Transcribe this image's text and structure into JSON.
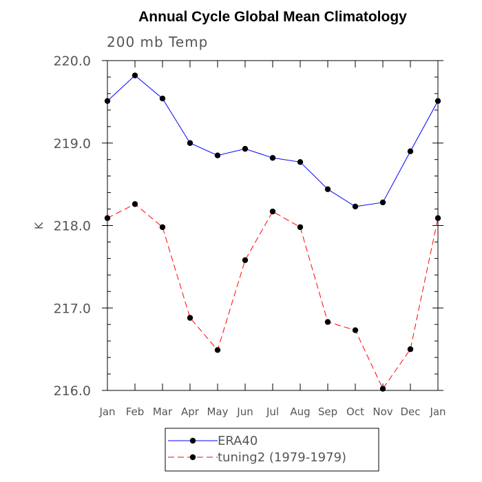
{
  "chart_data": {
    "type": "line",
    "title": "Annual Cycle Global Mean Climatology",
    "subtitle": "200 mb Temp",
    "xlabel": "",
    "ylabel": "K",
    "categories": [
      "Jan",
      "Feb",
      "Mar",
      "Apr",
      "May",
      "Jun",
      "Jul",
      "Aug",
      "Sep",
      "Oct",
      "Nov",
      "Dec",
      "Jan"
    ],
    "ylim": [
      216.0,
      220.0
    ],
    "yticks": [
      "216.0",
      "217.0",
      "218.0",
      "219.0",
      "220.0"
    ],
    "grid": false,
    "legend_position": "bottom",
    "series": [
      {
        "name": "ERA40",
        "color": "#0000ff",
        "dash": "solid",
        "values": [
          219.51,
          219.82,
          219.54,
          219.0,
          218.85,
          218.93,
          218.82,
          218.77,
          218.44,
          218.23,
          218.28,
          218.9,
          219.51
        ]
      },
      {
        "name": "tuning2 (1979-1979)",
        "color": "#ff0000",
        "dash": "dashed",
        "values": [
          218.09,
          218.26,
          217.98,
          216.88,
          216.49,
          217.58,
          218.17,
          217.98,
          216.83,
          216.73,
          216.02,
          216.5,
          218.09
        ]
      }
    ]
  }
}
